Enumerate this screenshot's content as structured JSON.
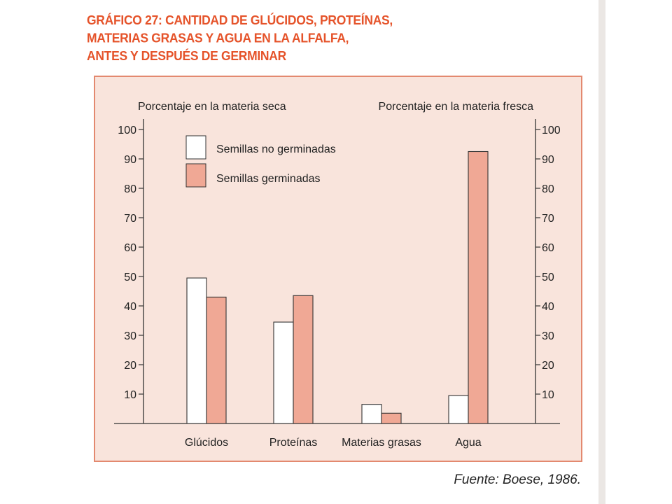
{
  "title_lines": [
    "GRÁFICO 27: CANTIDAD DE GLÚCIDOS, PROTEÍNAS,",
    "MATERIAS GRASAS Y AGUA EN LA ALFALFA,",
    "ANTES Y DESPUÉS DE GERMINAR"
  ],
  "source": "Fuente: Boese, 1986.",
  "colors": {
    "title": "#e5532a",
    "panel_bg": "#f9e4dc",
    "panel_border": "#e3896f",
    "bar_germinated": "#f0a895",
    "bar_not_germinated": "#ffffff",
    "axis": "#333333"
  },
  "chart_data": {
    "type": "bar",
    "categories": [
      "Glúcidos",
      "Proteínas",
      "Materias grasas",
      "Agua"
    ],
    "series": [
      {
        "name": "Semillas no germinadas",
        "values": [
          49.5,
          34.5,
          6.5,
          9.5
        ]
      },
      {
        "name": "Semillas germinadas",
        "values": [
          43,
          43.5,
          3.5,
          92.5
        ]
      }
    ],
    "ylabel_left": "Porcentaje en la materia seca",
    "ylabel_right": "Porcentaje en la materia fresca",
    "yticks": [
      10,
      20,
      30,
      40,
      50,
      60,
      70,
      80,
      90,
      100
    ],
    "ylim": [
      0,
      100
    ],
    "legend_position": "top-left",
    "grid": false
  }
}
